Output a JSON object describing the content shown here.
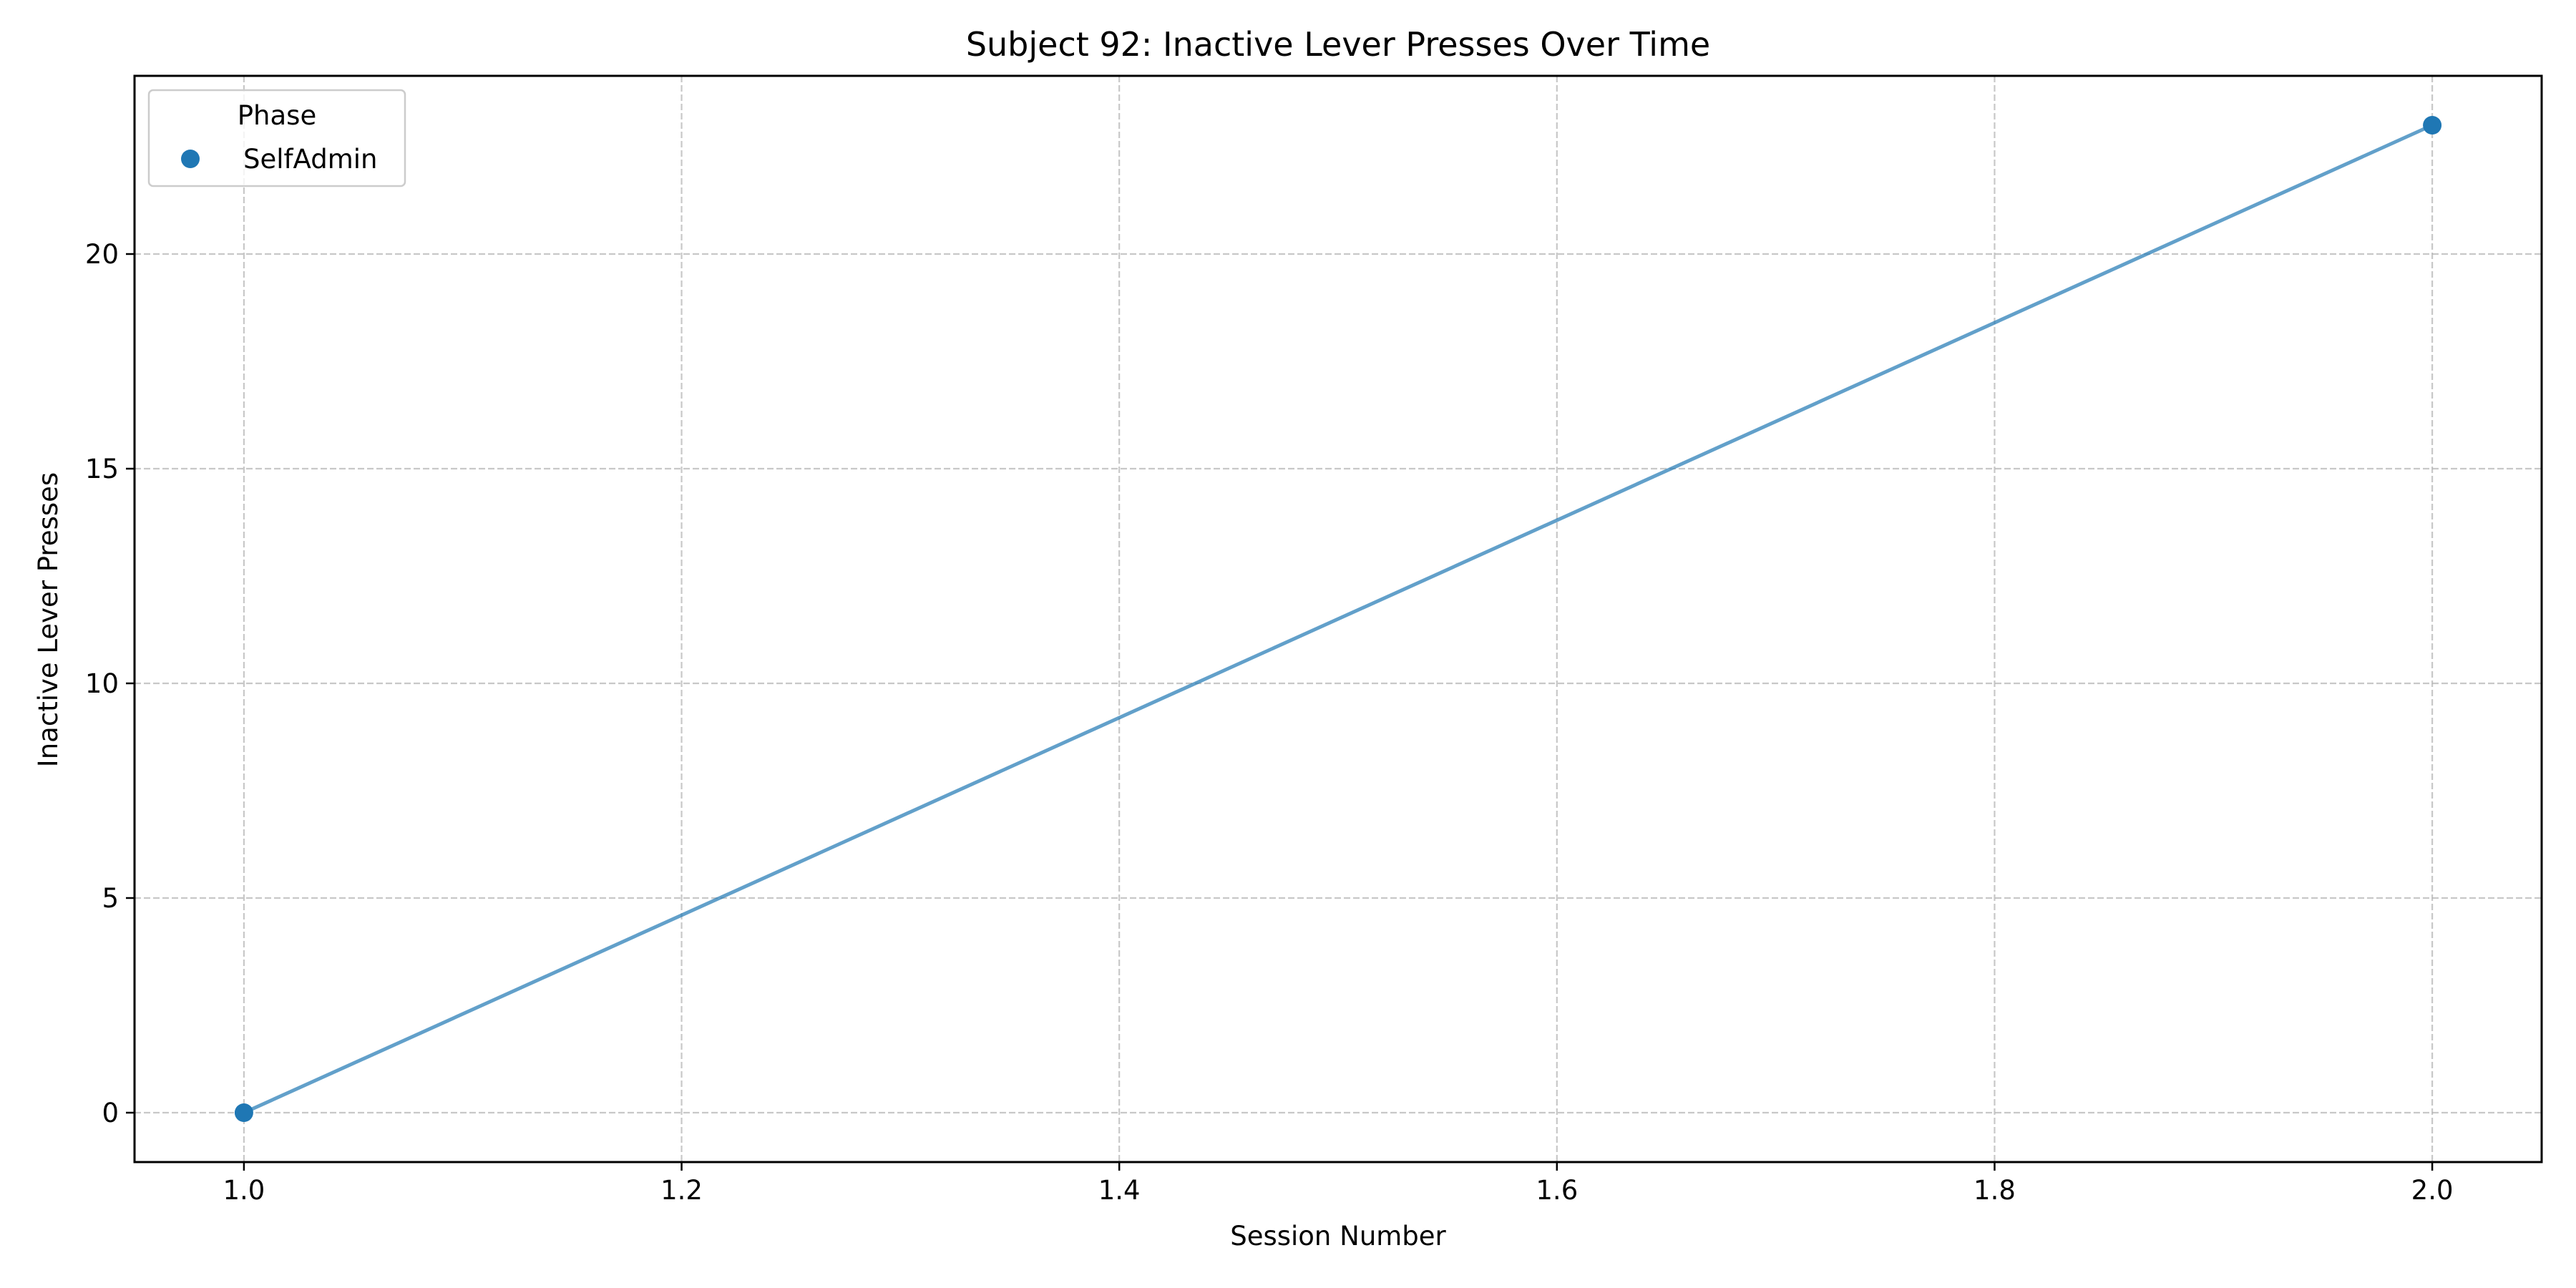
{
  "chart_data": {
    "type": "line",
    "title": "Subject 92: Inactive Lever Presses Over Time",
    "xlabel": "Session Number",
    "ylabel": "Inactive Lever Presses",
    "xlim": [
      0.95,
      2.05
    ],
    "ylim": [
      -1.15,
      24.15
    ],
    "xticks": [
      1.0,
      1.2,
      1.4,
      1.6,
      1.8,
      2.0
    ],
    "xtick_labels": [
      "1.0",
      "1.2",
      "1.4",
      "1.6",
      "1.8",
      "2.0"
    ],
    "yticks": [
      0,
      5,
      10,
      15,
      20
    ],
    "ytick_labels": [
      "0",
      "5",
      "10",
      "15",
      "20"
    ],
    "grid": true,
    "legend": {
      "title": "Phase",
      "placement": "top-left",
      "entries": [
        "SelfAdmin"
      ]
    },
    "series": [
      {
        "name": "SelfAdmin",
        "color": "#1f77b4",
        "points": [
          {
            "x": 1.0,
            "y": 0
          },
          {
            "x": 2.0,
            "y": 23
          }
        ]
      }
    ]
  }
}
